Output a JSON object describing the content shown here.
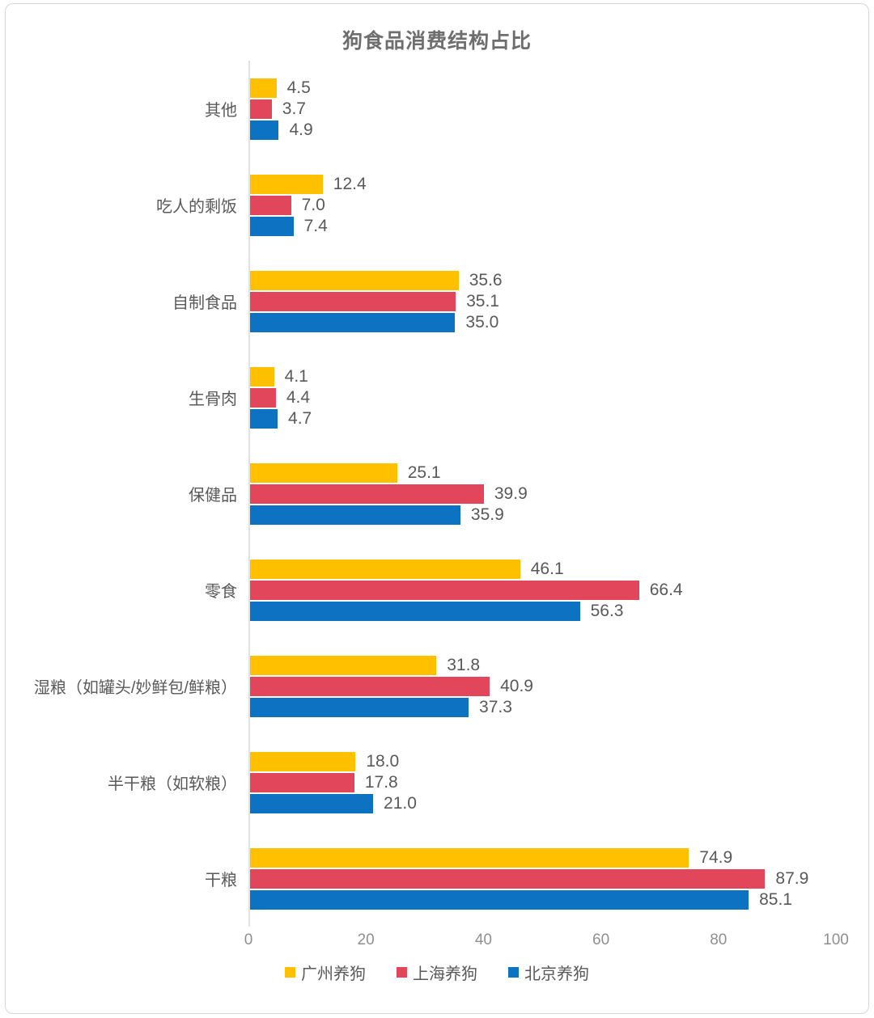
{
  "chart_data": {
    "type": "bar",
    "orientation": "horizontal",
    "title": "狗食品消费结构占比",
    "categories": [
      "其他",
      "吃人的剩饭",
      "自制食品",
      "生骨肉",
      "保健品",
      "零食",
      "湿粮（如罐头/妙鲜包/鲜粮）",
      "半干粮（如软粮）",
      "干粮"
    ],
    "series": [
      {
        "name": "广州养狗",
        "color": "#FFC000",
        "values": [
          4.5,
          12.4,
          35.6,
          4.1,
          25.1,
          46.1,
          31.8,
          18.0,
          74.9
        ]
      },
      {
        "name": "上海养狗",
        "color": "#E1465A",
        "values": [
          3.7,
          7.0,
          35.1,
          4.4,
          39.9,
          66.4,
          40.9,
          17.8,
          87.9
        ]
      },
      {
        "name": "北京养狗",
        "color": "#0D72C2",
        "values": [
          4.9,
          7.4,
          35.0,
          4.7,
          35.9,
          56.3,
          37.3,
          21.0,
          85.1
        ]
      }
    ],
    "xlim": [
      0,
      100
    ],
    "x_ticks": [
      0,
      20,
      40,
      60,
      80,
      100
    ],
    "value_label_decimals": 1,
    "grid": false,
    "legend_position": "bottom",
    "bar_value_labels": true
  }
}
